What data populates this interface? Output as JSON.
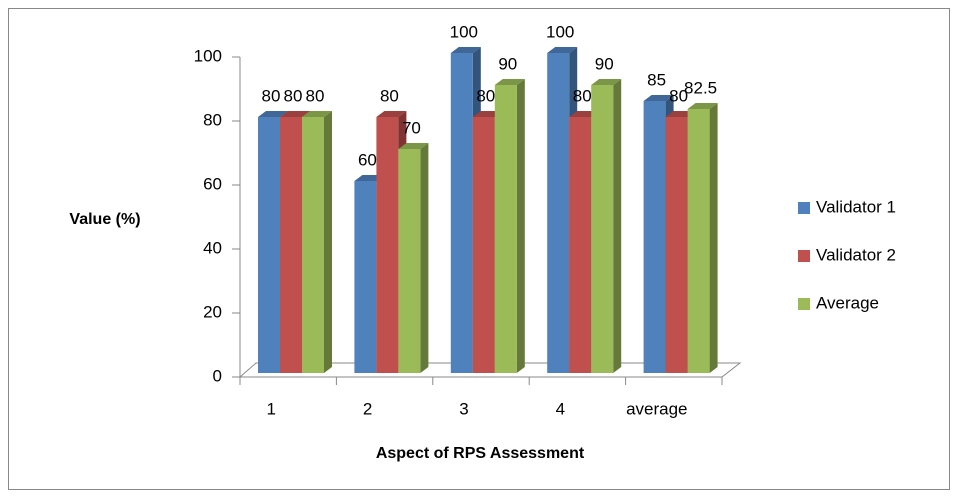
{
  "chart_data": {
    "type": "bar3d",
    "x_label": "Aspect of RPS Assessment",
    "y_label": "Value (%)",
    "categories": [
      "1",
      "2",
      "3",
      "4",
      "average"
    ],
    "series": [
      {
        "name": "Validator 1",
        "color": "#4f81bd",
        "values": [
          80,
          60,
          100,
          100,
          85
        ]
      },
      {
        "name": "Validator 2",
        "color": "#c0504d",
        "values": [
          80,
          80,
          80,
          80,
          80
        ]
      },
      {
        "name": "Average",
        "color": "#9bbb59",
        "values": [
          80,
          70,
          90,
          90,
          82.5
        ]
      }
    ],
    "ylim": [
      0,
      100
    ],
    "yticks": [
      0,
      20,
      40,
      60,
      80,
      100
    ],
    "legend": "right"
  }
}
